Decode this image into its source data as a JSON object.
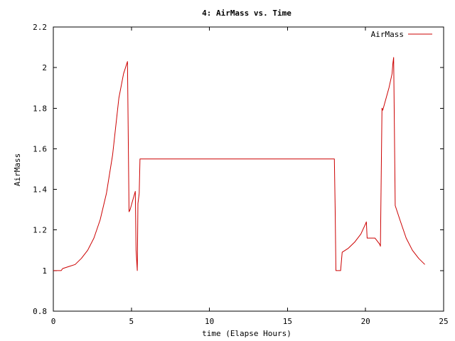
{
  "chart_data": {
    "type": "line",
    "title": "4: AirMass vs. Time",
    "xlabel": "time (Elapse Hours)",
    "ylabel": "AirMass",
    "xlim": [
      0,
      25
    ],
    "ylim": [
      0.8,
      2.2
    ],
    "x_ticks": [
      0,
      5,
      10,
      15,
      20,
      25
    ],
    "x_tick_labels": [
      "0",
      "5",
      "10",
      "15",
      "20",
      "25"
    ],
    "y_ticks": [
      0.8,
      1.0,
      1.2,
      1.4,
      1.6,
      1.8,
      2.0,
      2.2
    ],
    "y_tick_labels": [
      "0.8",
      "1",
      "1.2",
      "1.4",
      "1.6",
      "1.8",
      "2",
      "2.2"
    ],
    "grid": false,
    "legend_position": "top-right",
    "series": [
      {
        "name": "AirMass",
        "color": "#cc0000",
        "x": [
          0.0,
          0.5,
          0.6,
          1.0,
          1.4,
          1.8,
          2.2,
          2.6,
          3.0,
          3.4,
          3.8,
          4.2,
          4.5,
          4.75,
          4.85,
          4.92,
          5.1,
          5.25,
          5.3,
          5.38,
          5.42,
          5.5,
          5.55,
          18.0,
          18.05,
          18.1,
          18.4,
          18.5,
          18.9,
          19.3,
          19.7,
          20.0,
          20.05,
          20.1,
          20.5,
          20.6,
          20.9,
          20.95,
          21.05,
          21.1,
          21.5,
          21.7,
          21.75,
          21.8,
          21.9,
          22.2,
          22.6,
          23.0,
          23.4,
          23.8
        ],
        "y": [
          1.0,
          1.0,
          1.01,
          1.02,
          1.03,
          1.06,
          1.1,
          1.16,
          1.25,
          1.38,
          1.57,
          1.85,
          1.97,
          2.03,
          1.29,
          1.3,
          1.35,
          1.39,
          1.1,
          1.0,
          1.33,
          1.38,
          1.55,
          1.55,
          1.31,
          1.0,
          1.0,
          1.09,
          1.11,
          1.14,
          1.18,
          1.23,
          1.24,
          1.16,
          1.16,
          1.16,
          1.13,
          1.12,
          1.8,
          1.79,
          1.9,
          1.97,
          2.02,
          2.05,
          1.32,
          1.25,
          1.16,
          1.1,
          1.06,
          1.03
        ]
      }
    ]
  }
}
